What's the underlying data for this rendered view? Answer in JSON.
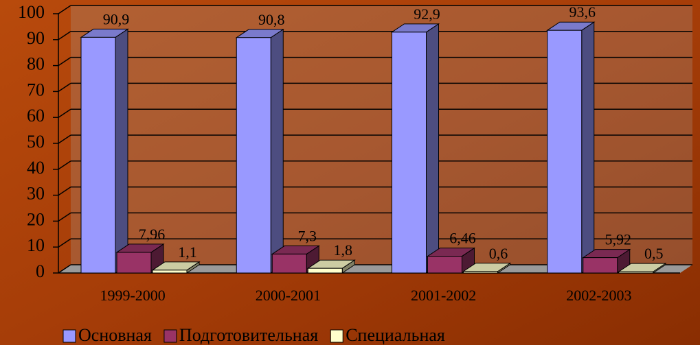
{
  "chart_data": {
    "type": "bar3d",
    "categories": [
      "1999-2000",
      "2000-2001",
      "2001-2002",
      "2002-2003"
    ],
    "series": [
      {
        "name": "Основная",
        "color": "#9999ff",
        "values": [
          90.9,
          90.8,
          92.9,
          93.6
        ],
        "value_labels": [
          "90,9",
          "90,8",
          "92,9",
          "93,6"
        ]
      },
      {
        "name": "Подготовительная",
        "color": "#993366",
        "values": [
          7.96,
          7.3,
          6.46,
          5.92
        ],
        "value_labels": [
          "7,96",
          "7,3",
          "6,46",
          "5,92"
        ]
      },
      {
        "name": "Специальная",
        "color": "#ffffcc",
        "values": [
          1.1,
          1.8,
          0.6,
          0.5
        ],
        "value_labels": [
          "1,1",
          "1,8",
          "0,6",
          "0,5"
        ]
      }
    ],
    "ylim": [
      0,
      100
    ],
    "yticks": [
      0,
      10,
      20,
      30,
      40,
      50,
      60,
      70,
      80,
      90,
      100
    ],
    "grid": true,
    "legend": "bottom"
  }
}
